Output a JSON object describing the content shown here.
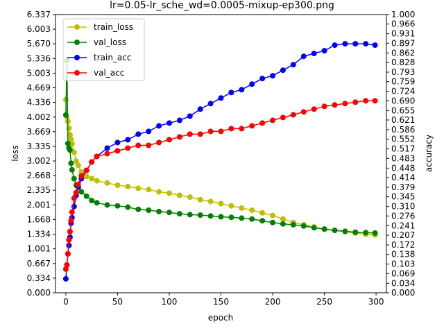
{
  "chart_data": {
    "type": "line",
    "title": "lr=0.05-lr_sche_wd=0.0005-mixup-ep300.png",
    "xlabel": "epoch",
    "ylabel_left": "loss",
    "ylabel_right": "accuracy",
    "xlim": [
      -10,
      310
    ],
    "ylim_left": [
      0,
      6.337
    ],
    "ylim_right": [
      0,
      1
    ],
    "x_ticks": [
      "0",
      "50",
      "100",
      "150",
      "200",
      "250",
      "300"
    ],
    "y_left_ticks": [
      "0.000",
      "0.334",
      "0.667",
      "1.001",
      "1.334",
      "1.668",
      "2.001",
      "2.335",
      "2.668",
      "3.002",
      "3.335",
      "3.669",
      "4.002",
      "4.336",
      "4.669",
      "5.003",
      "5.336",
      "5.670",
      "6.003",
      "6.337"
    ],
    "y_right_ticks": [
      "0.000",
      "0.034",
      "0.069",
      "0.103",
      "0.138",
      "0.172",
      "0.207",
      "0.241",
      "0.276",
      "0.310",
      "0.345",
      "0.379",
      "0.414",
      "0.448",
      "0.483",
      "0.517",
      "0.552",
      "0.586",
      "0.621",
      "0.655",
      "0.690",
      "0.724",
      "0.759",
      "0.793",
      "0.828",
      "0.862",
      "0.897",
      "0.931",
      "0.966",
      "1.000"
    ],
    "legend_position": "top-left",
    "x": [
      0,
      1,
      2,
      3,
      4,
      5,
      6,
      8,
      10,
      12,
      15,
      20,
      25,
      30,
      40,
      50,
      60,
      70,
      80,
      90,
      100,
      110,
      120,
      130,
      140,
      150,
      160,
      170,
      180,
      190,
      200,
      210,
      220,
      230,
      240,
      250,
      260,
      270,
      280,
      290,
      299
    ],
    "series": [
      {
        "name": "train_loss",
        "axis": "left",
        "color": "#bfbf00",
        "values": [
          4.4,
          4.0,
          3.9,
          3.75,
          3.6,
          3.5,
          3.4,
          3.2,
          3.0,
          2.9,
          2.75,
          2.65,
          2.6,
          2.55,
          2.5,
          2.45,
          2.42,
          2.38,
          2.35,
          2.3,
          2.27,
          2.22,
          2.18,
          2.12,
          2.08,
          2.03,
          1.98,
          1.93,
          1.88,
          1.82,
          1.76,
          1.68,
          1.6,
          1.55,
          1.5,
          1.45,
          1.42,
          1.39,
          1.36,
          1.33,
          1.32
        ]
      },
      {
        "name": "val_loss",
        "axis": "left",
        "color": "#008000",
        "values": [
          4.05,
          5.3,
          3.4,
          3.3,
          3.25,
          2.95,
          2.8,
          2.6,
          2.45,
          2.4,
          2.3,
          2.2,
          2.1,
          2.05,
          2.0,
          1.98,
          1.95,
          1.9,
          1.88,
          1.85,
          1.83,
          1.8,
          1.78,
          1.77,
          1.75,
          1.73,
          1.72,
          1.7,
          1.68,
          1.64,
          1.6,
          1.57,
          1.55,
          1.52,
          1.48,
          1.45,
          1.42,
          1.4,
          1.38,
          1.37,
          1.36
        ]
      },
      {
        "name": "train_acc",
        "axis": "right",
        "color": "#0000ff",
        "values": [
          0.05,
          0.1,
          0.14,
          0.17,
          0.2,
          0.25,
          0.27,
          0.31,
          0.35,
          0.38,
          0.41,
          0.44,
          0.47,
          0.49,
          0.52,
          0.54,
          0.55,
          0.57,
          0.58,
          0.6,
          0.61,
          0.62,
          0.635,
          0.66,
          0.68,
          0.7,
          0.72,
          0.73,
          0.75,
          0.77,
          0.78,
          0.8,
          0.82,
          0.85,
          0.86,
          0.87,
          0.89,
          0.895,
          0.895,
          0.895,
          0.89
        ]
      },
      {
        "name": "val_acc",
        "axis": "right",
        "color": "#ff0000",
        "values": [
          0.085,
          0.1,
          0.14,
          0.19,
          0.22,
          0.26,
          0.29,
          0.34,
          0.36,
          0.39,
          0.42,
          0.44,
          0.47,
          0.49,
          0.5,
          0.51,
          0.52,
          0.53,
          0.53,
          0.54,
          0.55,
          0.56,
          0.57,
          0.57,
          0.58,
          0.58,
          0.59,
          0.59,
          0.6,
          0.61,
          0.62,
          0.63,
          0.64,
          0.65,
          0.66,
          0.67,
          0.675,
          0.68,
          0.685,
          0.69,
          0.69
        ]
      }
    ]
  }
}
